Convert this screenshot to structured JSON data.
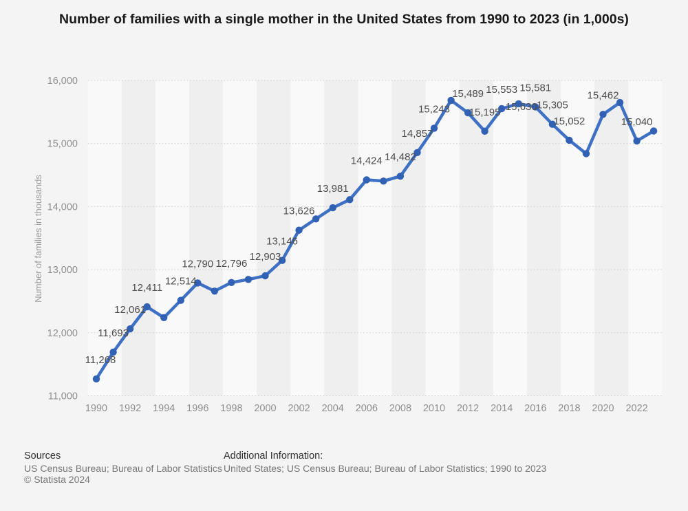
{
  "chart_data": {
    "type": "line",
    "title": "Number of families with a single mother in the United States from 1990 to 2023 (in 1,000s)",
    "xlabel": "",
    "ylabel": "Number of families in thousands",
    "ylim": [
      11000,
      16000
    ],
    "x_range": [
      1990,
      2023
    ],
    "ytick_values": [
      16000,
      15000,
      14000,
      13000,
      12000,
      11000
    ],
    "ytick_labels": [
      "16,000",
      "15,000",
      "14,000",
      "13,000",
      "12,000",
      "11,000"
    ],
    "xtick_years": [
      1990,
      1992,
      1994,
      1996,
      1998,
      2000,
      2002,
      2004,
      2006,
      2008,
      2010,
      2012,
      2014,
      2016,
      2018,
      2020,
      2022
    ],
    "grid": "horizontal-dotted",
    "legend": "none",
    "line_color": "#3e70c4",
    "marker_color": "#3061b5",
    "label_color": "#4d4d4d",
    "tick_color": "#8e8e8e",
    "background": "#f4f4f4",
    "band_colors": [
      "#f9f9f9",
      "#efefef"
    ],
    "points": [
      {
        "year": 1990,
        "value": 11268,
        "label": "11,268"
      },
      {
        "year": 1991,
        "value": 11693,
        "label": "11,693"
      },
      {
        "year": 1992,
        "value": 12061,
        "label": "12,061"
      },
      {
        "year": 1993,
        "value": 12411,
        "label": "12,411"
      },
      {
        "year": 1994,
        "value": 12240,
        "label": null
      },
      {
        "year": 1995,
        "value": 12514,
        "label": "12,514"
      },
      {
        "year": 1996,
        "value": 12790,
        "label": "12,790"
      },
      {
        "year": 1997,
        "value": 12660,
        "label": null
      },
      {
        "year": 1998,
        "value": 12796,
        "label": "12,796"
      },
      {
        "year": 1999,
        "value": 12845,
        "label": null
      },
      {
        "year": 2000,
        "value": 12903,
        "label": "12,903"
      },
      {
        "year": 2001,
        "value": 13146,
        "label": "13,146"
      },
      {
        "year": 2002,
        "value": 13626,
        "label": "13,626"
      },
      {
        "year": 2003,
        "value": 13805,
        "label": null
      },
      {
        "year": 2004,
        "value": 13981,
        "label": "13,981"
      },
      {
        "year": 2005,
        "value": 14110,
        "label": null
      },
      {
        "year": 2006,
        "value": 14424,
        "label": "14,424"
      },
      {
        "year": 2007,
        "value": 14405,
        "label": null
      },
      {
        "year": 2008,
        "value": 14482,
        "label": "14,482"
      },
      {
        "year": 2009,
        "value": 14857,
        "label": "14,857"
      },
      {
        "year": 2010,
        "value": 15243,
        "label": "15,243"
      },
      {
        "year": 2011,
        "value": 15685,
        "label": null
      },
      {
        "year": 2012,
        "value": 15489,
        "label": "15,489"
      },
      {
        "year": 2013,
        "value": 15195,
        "label": "15,195"
      },
      {
        "year": 2014,
        "value": 15553,
        "label": "15,553"
      },
      {
        "year": 2015,
        "value": 15630,
        "label": "15,630"
      },
      {
        "year": 2016,
        "value": 15581,
        "label": "15,581"
      },
      {
        "year": 2017,
        "value": 15305,
        "label": "15,305"
      },
      {
        "year": 2018,
        "value": 15052,
        "label": "15,052"
      },
      {
        "year": 2019,
        "value": 14840,
        "label": null
      },
      {
        "year": 2020,
        "value": 15462,
        "label": "15,462"
      },
      {
        "year": 2021,
        "value": 15650,
        "label": null
      },
      {
        "year": 2022,
        "value": 15040,
        "label": "15,040"
      },
      {
        "year": 2023,
        "value": 15200,
        "label": null
      }
    ]
  },
  "footer": {
    "sources_label": "Sources",
    "sources_text": "US Census Bureau; Bureau of Labor Statistics",
    "copyright": "© Statista 2024",
    "additional_label": "Additional Information:",
    "additional_text": "United States; US Census Bureau; Bureau of Labor Statistics; 1990 to 2023"
  }
}
